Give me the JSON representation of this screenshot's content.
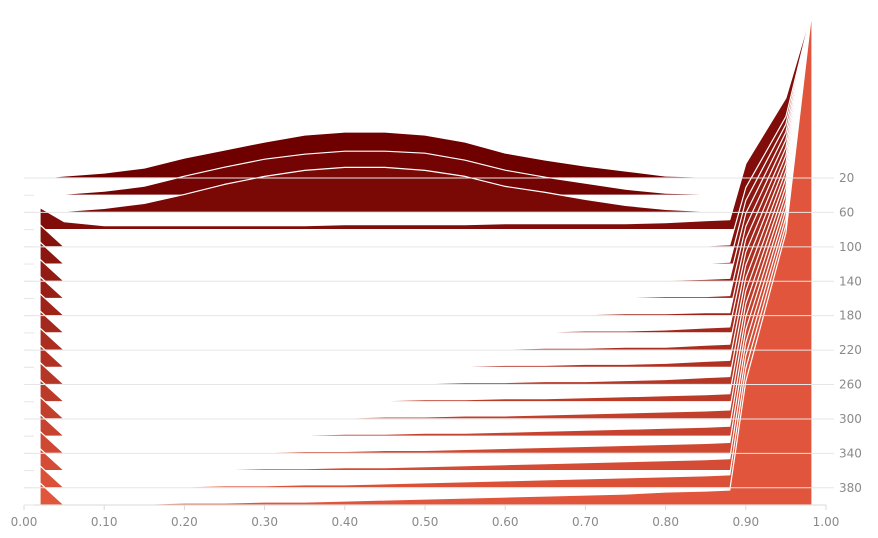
{
  "chart_data": {
    "type": "area",
    "subtype": "ridgeline",
    "title": "",
    "xlabel": "",
    "ylabel": "",
    "xlim": [
      0,
      1
    ],
    "x_ticks": [
      "0.00",
      "0.10",
      "0.20",
      "0.30",
      "0.40",
      "0.50",
      "0.60",
      "0.70",
      "0.80",
      "0.90",
      "1.00"
    ],
    "y_ticks": [
      "20",
      "60",
      "100",
      "140",
      "180",
      "220",
      "260",
      "300",
      "340",
      "380"
    ],
    "y_tick_values": [
      20,
      60,
      100,
      140,
      180,
      220,
      260,
      300,
      340,
      380
    ],
    "row_spacing": 20,
    "x": [
      0.02,
      0.05,
      0.1,
      0.15,
      0.2,
      0.25,
      0.3,
      0.35,
      0.4,
      0.45,
      0.5,
      0.55,
      0.6,
      0.65,
      0.7,
      0.75,
      0.8,
      0.85,
      0.88,
      0.9,
      0.95,
      0.99
    ],
    "colors": {
      "top": "#6e0000",
      "bottom": "#e0553b"
    },
    "series": [
      {
        "row": 0,
        "values": [
          0,
          2,
          5,
          10,
          20,
          28,
          36,
          43,
          46,
          46,
          43,
          36,
          25,
          18,
          12,
          7,
          2,
          1,
          0,
          0,
          0,
          0
        ]
      },
      {
        "row": 1,
        "values": [
          0,
          1,
          4,
          9,
          19,
          28,
          36,
          41,
          44,
          44,
          42,
          35,
          25,
          18,
          12,
          6,
          2,
          1,
          0,
          0,
          0,
          0
        ]
      },
      {
        "row": 2,
        "values": [
          0,
          1,
          4,
          9,
          18,
          28,
          36,
          42,
          45,
          45,
          42,
          36,
          26,
          20,
          13,
          7,
          3,
          1,
          0,
          0,
          0,
          0
        ]
      },
      {
        "row": 3,
        "values": [
          22,
          8,
          4,
          4,
          4,
          4,
          4,
          4,
          5,
          5,
          5,
          5,
          6,
          6,
          6,
          6,
          7,
          9,
          10,
          30,
          60,
          100
        ]
      },
      {
        "row": 4,
        "values": [
          22,
          0,
          0,
          0,
          0,
          0,
          0,
          0,
          0,
          0,
          0,
          0,
          0,
          0,
          0,
          0,
          1,
          1,
          2,
          25,
          55,
          100
        ]
      },
      {
        "row": 5,
        "values": [
          22,
          0,
          0,
          0,
          0,
          0,
          0,
          0,
          0,
          0,
          0,
          0,
          0,
          0,
          0,
          1,
          1,
          1,
          2,
          25,
          55,
          100
        ]
      },
      {
        "row": 6,
        "values": [
          22,
          0,
          0,
          0,
          0,
          0,
          0,
          0,
          0,
          0,
          0,
          0,
          0,
          0,
          1,
          1,
          1,
          2,
          3,
          25,
          55,
          100
        ]
      },
      {
        "row": 7,
        "values": [
          22,
          0,
          0,
          0,
          0,
          0,
          0,
          0,
          0,
          0,
          0,
          0,
          0,
          1,
          1,
          1,
          2,
          2,
          3,
          25,
          55,
          100
        ]
      },
      {
        "row": 8,
        "values": [
          22,
          0,
          0,
          0,
          0,
          0,
          0,
          0,
          0,
          0,
          0,
          0,
          1,
          1,
          1,
          2,
          2,
          3,
          3,
          25,
          55,
          100
        ]
      },
      {
        "row": 9,
        "values": [
          22,
          0,
          0,
          0,
          0,
          0,
          0,
          0,
          0,
          0,
          0,
          1,
          1,
          1,
          2,
          2,
          3,
          5,
          6,
          25,
          55,
          100
        ]
      },
      {
        "row": 10,
        "values": [
          22,
          0,
          0,
          0,
          0,
          0,
          0,
          0,
          0,
          0,
          1,
          1,
          1,
          2,
          2,
          3,
          3,
          5,
          6,
          25,
          55,
          100
        ]
      },
      {
        "row": 11,
        "values": [
          22,
          0,
          0,
          0,
          0,
          0,
          0,
          0,
          0,
          1,
          1,
          1,
          2,
          2,
          3,
          3,
          4,
          6,
          7,
          25,
          55,
          100
        ]
      },
      {
        "row": 12,
        "values": [
          22,
          0,
          0,
          0,
          0,
          0,
          0,
          0,
          1,
          1,
          1,
          2,
          2,
          3,
          3,
          4,
          5,
          7,
          8,
          25,
          55,
          100
        ]
      },
      {
        "row": 13,
        "values": [
          22,
          0,
          0,
          0,
          0,
          0,
          0,
          1,
          1,
          1,
          2,
          2,
          3,
          3,
          4,
          5,
          6,
          7,
          8,
          25,
          55,
          100
        ]
      },
      {
        "row": 14,
        "values": [
          22,
          0,
          0,
          0,
          0,
          0,
          1,
          1,
          1,
          2,
          2,
          3,
          3,
          4,
          5,
          6,
          7,
          8,
          9,
          25,
          55,
          100
        ]
      },
      {
        "row": 15,
        "values": [
          22,
          0,
          0,
          0,
          0,
          1,
          1,
          1,
          2,
          2,
          3,
          3,
          4,
          5,
          6,
          7,
          8,
          9,
          10,
          25,
          55,
          100
        ]
      },
      {
        "row": 16,
        "values": [
          22,
          0,
          0,
          0,
          1,
          1,
          1,
          2,
          2,
          3,
          3,
          4,
          5,
          6,
          7,
          8,
          9,
          10,
          11,
          25,
          55,
          100
        ]
      },
      {
        "row": 17,
        "values": [
          22,
          0,
          0,
          1,
          1,
          1,
          2,
          2,
          3,
          3,
          4,
          5,
          6,
          7,
          8,
          9,
          10,
          11,
          12,
          25,
          55,
          100
        ]
      },
      {
        "row": 18,
        "values": [
          22,
          0,
          0,
          1,
          1,
          2,
          2,
          3,
          3,
          4,
          5,
          6,
          7,
          8,
          9,
          10,
          11,
          12,
          13,
          25,
          55,
          100
        ]
      },
      {
        "row": 19,
        "values": [
          22,
          0,
          1,
          1,
          2,
          2,
          3,
          3,
          4,
          5,
          6,
          7,
          8,
          9,
          10,
          11,
          13,
          14,
          15,
          25,
          55,
          100
        ]
      }
    ]
  }
}
